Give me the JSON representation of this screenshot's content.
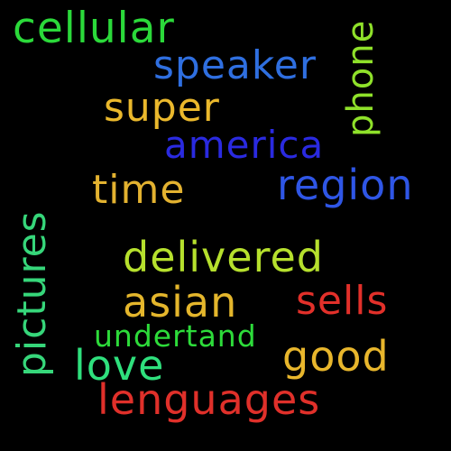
{
  "word_cloud": {
    "background": "#000000",
    "words": {
      "cellular": {
        "text": "cellular",
        "color": "#2bd93a"
      },
      "speaker": {
        "text": "speaker",
        "color": "#2f6fe0"
      },
      "phone": {
        "text": "phone",
        "color": "#8fe12a"
      },
      "super": {
        "text": "super",
        "color": "#eab82c"
      },
      "america": {
        "text": "america",
        "color": "#2a2ae0"
      },
      "region": {
        "text": "region",
        "color": "#2f56e6"
      },
      "time": {
        "text": "time",
        "color": "#e3b230"
      },
      "pictures": {
        "text": "pictures",
        "color": "#36d67a"
      },
      "delivered": {
        "text": "delivered",
        "color": "#b6e02d"
      },
      "asian": {
        "text": "asian",
        "color": "#e4b62c"
      },
      "sells": {
        "text": "sells",
        "color": "#e2302a"
      },
      "undertand": {
        "text": "undertand",
        "color": "#2ddb3a"
      },
      "love": {
        "text": "love",
        "color": "#2fe07d"
      },
      "good": {
        "text": "good",
        "color": "#e8b62c"
      },
      "lenguages": {
        "text": "lenguages",
        "color": "#e0302a"
      }
    }
  }
}
